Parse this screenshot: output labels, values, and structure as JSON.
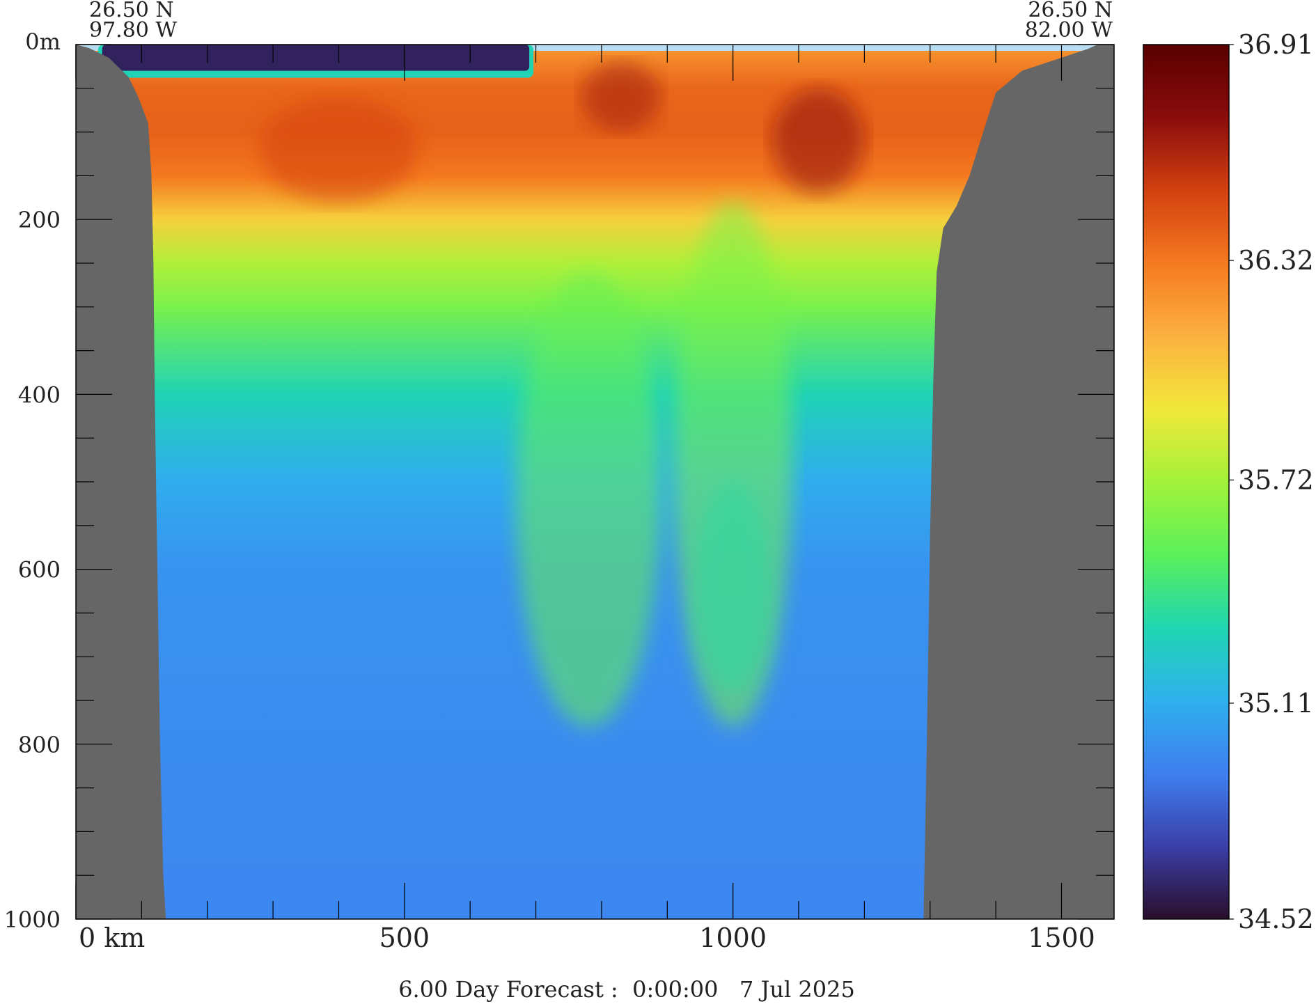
{
  "chart_data": {
    "type": "heatmap",
    "title": "",
    "corner_labels": {
      "left": {
        "lat": "26.50 N",
        "lon": "97.80 W"
      },
      "right": {
        "lat": "26.50 N",
        "lon": "82.00 W"
      }
    },
    "xlabel": "",
    "ylabel": "",
    "xlim": [
      0,
      1580
    ],
    "ylim": [
      1000,
      0
    ],
    "x_ticks": [
      {
        "value": 0,
        "label": "0 km"
      },
      {
        "value": 500,
        "label": "500"
      },
      {
        "value": 1000,
        "label": "1000"
      },
      {
        "value": 1500,
        "label": "1500"
      }
    ],
    "x_minor_ticks": [
      100,
      200,
      300,
      400,
      600,
      700,
      800,
      900,
      1100,
      1200,
      1300,
      1400
    ],
    "y_ticks": [
      {
        "value": 0,
        "label": "0m"
      },
      {
        "value": 200,
        "label": "200"
      },
      {
        "value": 400,
        "label": "400"
      },
      {
        "value": 600,
        "label": "600"
      },
      {
        "value": 800,
        "label": "800"
      },
      {
        "value": 1000,
        "label": "1000"
      }
    ],
    "y_minor_ticks": [
      50,
      100,
      150,
      250,
      300,
      350,
      450,
      500,
      550,
      650,
      700,
      750,
      850,
      900,
      950
    ],
    "colorbar": {
      "min": 34.52,
      "max": 36.91,
      "tick_labels": [
        "36.91",
        "36.32",
        "35.72",
        "35.11",
        "34.52"
      ],
      "tick_values": [
        36.91,
        36.32,
        35.72,
        35.11,
        34.52
      ],
      "colormap": [
        "#2a0f2c",
        "#3b3fa8",
        "#3f7ff0",
        "#2fb0ee",
        "#1fd6b0",
        "#5af05a",
        "#a3f23a",
        "#f2e83a",
        "#fcb040",
        "#f57a20",
        "#d24010",
        "#8a0c0c",
        "#5a0000"
      ]
    },
    "land_color": "#666666",
    "sea_surface_color": "#b8dcf2",
    "bathymetry_left": [
      [
        0,
        0
      ],
      [
        20,
        4
      ],
      [
        50,
        15
      ],
      [
        80,
        37
      ],
      [
        95,
        60
      ],
      [
        110,
        90
      ],
      [
        115,
        150
      ],
      [
        118,
        250
      ],
      [
        120,
        400
      ],
      [
        124,
        600
      ],
      [
        128,
        800
      ],
      [
        133,
        950
      ],
      [
        137,
        1000
      ]
    ],
    "bathymetry_right": [
      [
        1555,
        0
      ],
      [
        1540,
        5
      ],
      [
        1500,
        15
      ],
      [
        1440,
        30
      ],
      [
        1400,
        55
      ],
      [
        1385,
        90
      ],
      [
        1360,
        150
      ],
      [
        1340,
        185
      ],
      [
        1320,
        210
      ],
      [
        1310,
        260
      ],
      [
        1305,
        380
      ],
      [
        1300,
        560
      ],
      [
        1295,
        800
      ],
      [
        1290,
        1000
      ]
    ],
    "salinity_profile": [
      {
        "depth": 0,
        "psu": 36.2
      },
      {
        "depth": 50,
        "psu": 36.38
      },
      {
        "depth": 100,
        "psu": 36.4
      },
      {
        "depth": 150,
        "psu": 36.32
      },
      {
        "depth": 200,
        "psu": 36.0
      },
      {
        "depth": 250,
        "psu": 35.75
      },
      {
        "depth": 300,
        "psu": 35.6
      },
      {
        "depth": 400,
        "psu": 35.3
      },
      {
        "depth": 500,
        "psu": 35.1
      },
      {
        "depth": 600,
        "psu": 35.0
      },
      {
        "depth": 800,
        "psu": 34.97
      },
      {
        "depth": 1000,
        "psu": 34.95
      }
    ],
    "surface_low_salinity_patch": {
      "x_range": [
        40,
        690
      ],
      "depth": [
        0,
        30
      ],
      "psu": 34.6
    }
  },
  "forecast_label": "6.00 Day Forecast :  0:00:00   7 Jul 2025"
}
